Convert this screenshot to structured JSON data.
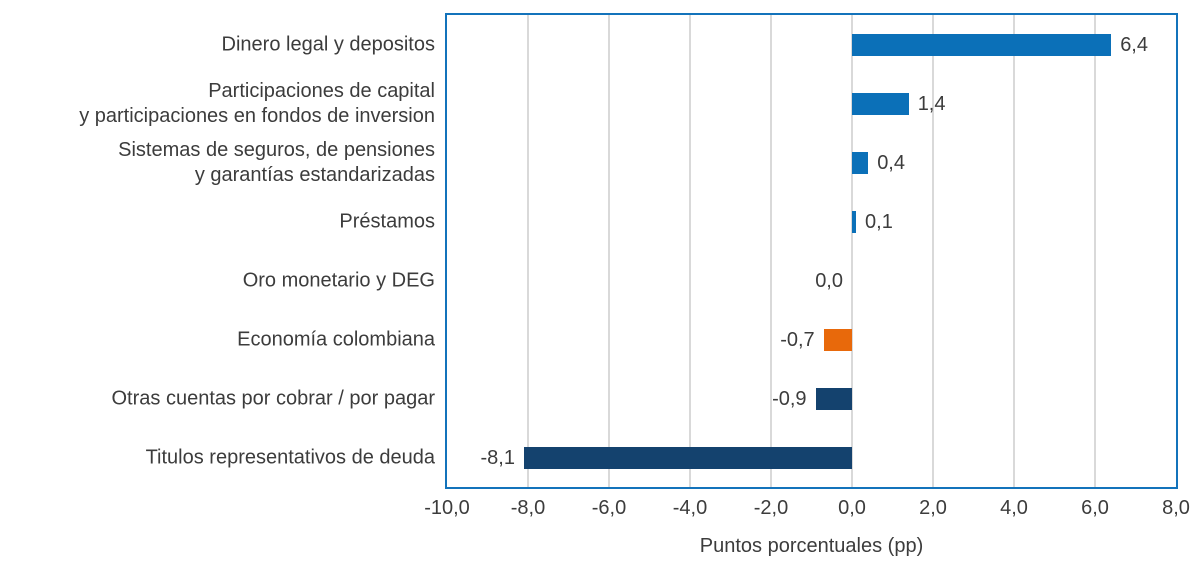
{
  "colors": {
    "blue": "#0b70b8",
    "navy": "#14426e",
    "orange": "#e8690b",
    "grid": "#d9d9d9",
    "border": "#1373bb",
    "text": "#3c3c3c"
  },
  "chart_data": {
    "type": "bar",
    "orientation": "horizontal",
    "title": "",
    "xlabel": "Puntos porcentuales (pp)",
    "ylabel": "",
    "xlim": [
      -10,
      8
    ],
    "grid": true,
    "x_ticks": [
      -10,
      -8,
      -6,
      -4,
      -2,
      0,
      2,
      4,
      6,
      8
    ],
    "x_tick_labels": [
      "-10,0",
      "-8,0",
      "-6,0",
      "-4,0",
      "-2,0",
      "0,0",
      "2,0",
      "4,0",
      "6,0",
      "8,0"
    ],
    "categories": [
      "Dinero legal y depositos",
      "Participaciones de capital y participaciones en fondos de inversion",
      "Sistemas de seguros, de pensiones y garantías estandarizadas",
      "Préstamos",
      "Oro monetario y DEG",
      "Economía colombiana",
      "Otras cuentas por cobrar / por pagar",
      "Titulos representativos de deuda"
    ],
    "values": [
      6.4,
      1.4,
      0.4,
      0.1,
      0.0,
      -0.7,
      -0.9,
      -8.1
    ],
    "items": [
      {
        "label_lines": [
          "Dinero legal y depositos"
        ],
        "value": 6.4,
        "display": "6,4",
        "color": "blue"
      },
      {
        "label_lines": [
          "Participaciones de capital",
          "y participaciones en fondos de inversion"
        ],
        "value": 1.4,
        "display": "1,4",
        "color": "blue"
      },
      {
        "label_lines": [
          "Sistemas de seguros, de pensiones",
          "y garantías estandarizadas"
        ],
        "value": 0.4,
        "display": "0,4",
        "color": "blue"
      },
      {
        "label_lines": [
          "Préstamos"
        ],
        "value": 0.1,
        "display": "0,1",
        "color": "blue"
      },
      {
        "label_lines": [
          "Oro monetario y DEG"
        ],
        "value": 0.0,
        "display": "0,0",
        "color": "blue"
      },
      {
        "label_lines": [
          "Economía colombiana"
        ],
        "value": -0.7,
        "display": "-0,7",
        "color": "orange"
      },
      {
        "label_lines": [
          "Otras cuentas por cobrar / por pagar"
        ],
        "value": -0.9,
        "display": "-0,9",
        "color": "navy"
      },
      {
        "label_lines": [
          "Titulos representativos de deuda"
        ],
        "value": -8.1,
        "display": "-8,1",
        "color": "navy"
      }
    ]
  }
}
